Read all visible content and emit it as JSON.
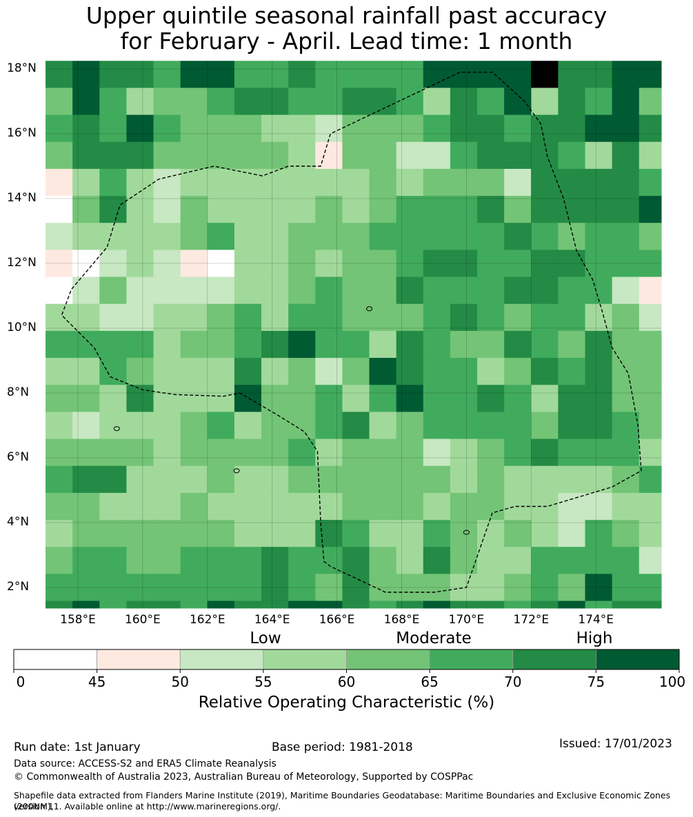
{
  "title": {
    "line1": "Upper quintile seasonal rainfall past accuracy",
    "line2": "for February - April. Lead time: 1 month"
  },
  "map": {
    "lon_range": [
      157.0,
      176.0
    ],
    "lat_range": [
      1.35,
      18.25
    ],
    "lat_labels": [
      "18°N",
      "16°N",
      "14°N",
      "12°N",
      "10°N",
      "8°N",
      "6°N",
      "4°N",
      "2°N"
    ],
    "lat_values": [
      18,
      16,
      14,
      12,
      10,
      8,
      6,
      4,
      2
    ],
    "lon_labels": [
      "158°E",
      "160°E",
      "162°E",
      "164°E",
      "166°E",
      "168°E",
      "170°E",
      "172°E",
      "174°E"
    ],
    "lon_values": [
      158,
      160,
      162,
      164,
      166,
      168,
      170,
      172,
      174
    ],
    "gridlines": true,
    "eez_boundary": [
      [
        169.8,
        17.9
      ],
      [
        165.8,
        16.0
      ],
      [
        165.5,
        15.0
      ],
      [
        164.5,
        15.0
      ],
      [
        163.7,
        14.7
      ],
      [
        162.2,
        15.0
      ],
      [
        160.5,
        14.6
      ],
      [
        159.3,
        13.8
      ],
      [
        158.9,
        12.5
      ],
      [
        157.8,
        11.2
      ],
      [
        157.5,
        10.4
      ],
      [
        158.5,
        9.4
      ],
      [
        159.0,
        8.5
      ],
      [
        160.0,
        8.1
      ],
      [
        161.0,
        7.95
      ],
      [
        162.5,
        7.9
      ],
      [
        163.0,
        8.0
      ],
      [
        164.2,
        7.3
      ],
      [
        165.0,
        6.8
      ],
      [
        165.4,
        6.2
      ],
      [
        165.5,
        4.0
      ],
      [
        165.6,
        2.8
      ],
      [
        165.8,
        2.65
      ],
      [
        167.5,
        1.85
      ],
      [
        169.0,
        1.85
      ],
      [
        170.0,
        2.0
      ],
      [
        170.8,
        4.3
      ],
      [
        171.5,
        4.5
      ],
      [
        172.5,
        4.5
      ],
      [
        173.5,
        4.8
      ],
      [
        174.5,
        5.1
      ],
      [
        175.4,
        5.6
      ],
      [
        175.3,
        7.0
      ],
      [
        175.0,
        8.6
      ],
      [
        174.5,
        9.4
      ],
      [
        174.2,
        10.5
      ],
      [
        173.9,
        11.5
      ],
      [
        173.4,
        12.4
      ],
      [
        173.0,
        14.0
      ],
      [
        172.5,
        15.3
      ],
      [
        172.3,
        16.3
      ],
      [
        171.8,
        17.0
      ],
      [
        170.8,
        17.9
      ],
      [
        169.8,
        17.9
      ]
    ],
    "cell_grid": {
      "lon_start": 157.0,
      "lat_start": 18.25,
      "cell_deg": 0.8333,
      "cols": 23,
      "rows": 21,
      "value_classes_rows": [
        "67665775565555777786677",
        "47534456655665365736574",
        "56575444332444566566776",
        "46664444431442256665363",
        "13532333333343444266665",
        "04632433334345556466667",
        "23333453344455555654554",
        "10232103343445665566555",
        "02422223345446555665521",
        "33223345355444565455342",
        "55553445675536544654644",
        "33543336342476553465644",
        "44363337445357556536644",
        "32333453445634555546654",
        "44443444453444234565553",
        "56633343344444434333345",
        "44333433333444344332233",
        "34444443336533543432543",
        "45544555655643643355552",
        "55555555654644433454755",
        "67566576677656766567566"
      ]
    },
    "islands": [
      [
        159.2,
        6.9
      ],
      [
        162.9,
        5.6
      ],
      [
        167.0,
        10.6
      ],
      [
        170.0,
        3.7
      ]
    ]
  },
  "colorbar": {
    "category_labels": [
      "Low",
      "Moderate",
      "High"
    ],
    "tick_labels": [
      "0",
      "45",
      "50",
      "55",
      "60",
      "65",
      "70",
      "75",
      "100"
    ],
    "colors": [
      "#ffffff",
      "#fee9e1",
      "#c7e8c2",
      "#a1d99b",
      "#73c476",
      "#41ab5d",
      "#238b45",
      "#005a32"
    ],
    "title": "Relative Operating Characteristic (%)"
  },
  "footer": {
    "run_date": "Run date: 1st January",
    "base_period": "Base period: 1981-2018",
    "issued": "Issued: 17/01/2023",
    "data_source": "Data source: ACCESS-S2 and ERA5 Climate Reanalysis",
    "copyright": "© Commonwealth of Australia 2023, Australian Bureau of Meteorology, Supported by COSPPac",
    "shapefile_line1": "Shapefile data extracted from Flanders Marine Institute (2019), Maritime Boundaries Geodatabase: Maritime Boundaries and Exclusive Economic Zones (200NM),",
    "shapefile_line2": "version 11. Available online at http://www.marineregions.org/."
  }
}
